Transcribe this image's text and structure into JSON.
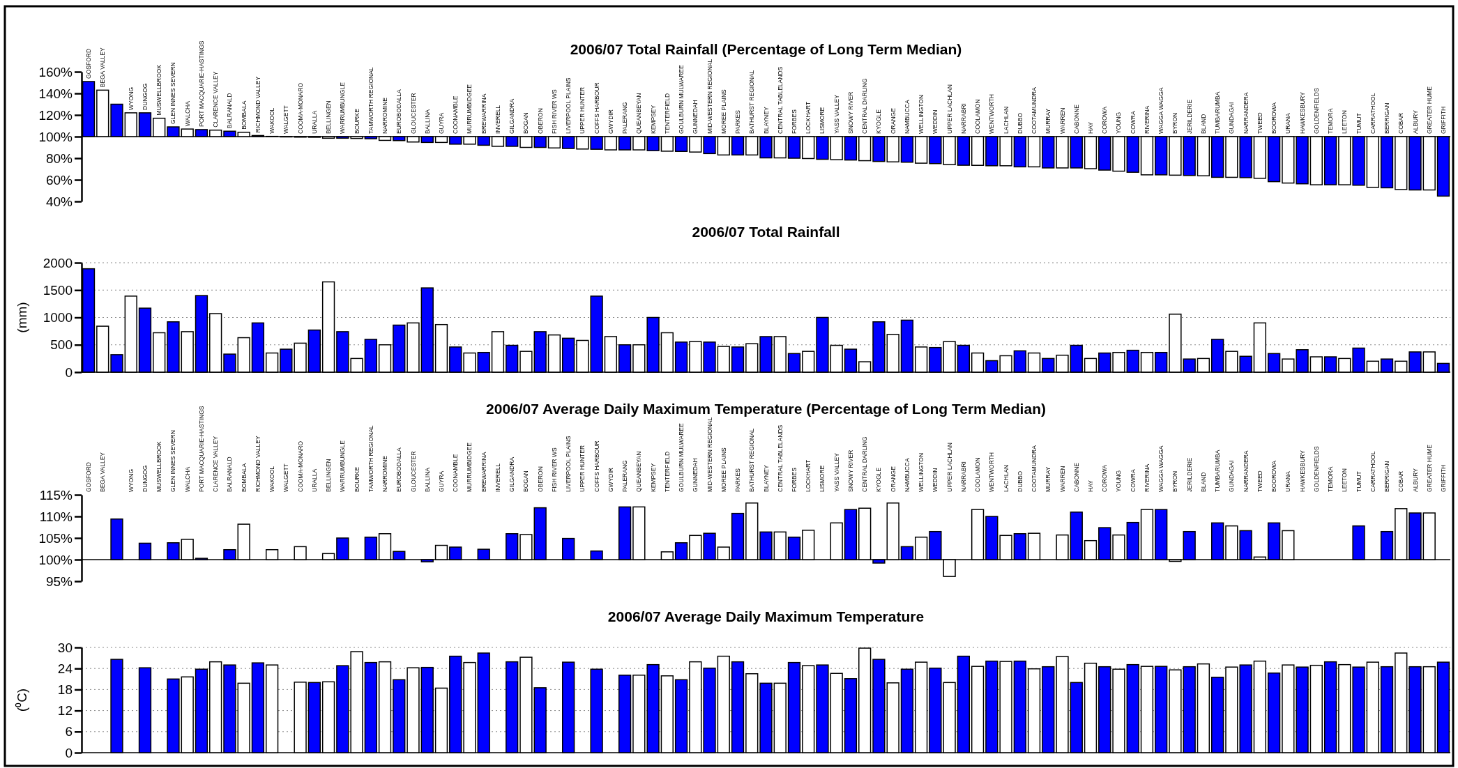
{
  "chart_data": [
    {
      "type": "bar",
      "title": "2006/07 Total Rainfall (Percentage of Long Term Median)",
      "categories": [
        "GOSFORD",
        "BEGA VALLEY",
        null,
        "WYONG",
        "DUNGOG",
        "MUSWELLBROOK",
        "GLEN INNES SEVERN",
        "WALCHA",
        "PORT MACQUARIE-HASTINGS",
        "CLARENCE VALLEY",
        "BALRANALD",
        "BOMBALA",
        "RICHMOND VALLEY",
        "WAKOOL",
        "WALGETT",
        "COOMA-MONARO",
        "URALLA",
        "BELLINGEN",
        "WARRUMBUNGLE",
        "BOURKE",
        "TAMWORTH REGIONAL",
        "NARROMINE",
        "EUROBODALLA",
        "GLOUCESTER",
        "BALLINA",
        "GUYRA",
        "COONAMBLE",
        "MURRUMBIDGEE",
        "BREWARRINA",
        "INVERELL",
        "GILGANDRA",
        "BOGAN",
        "OBERON",
        "FISH RIVER WS",
        "LIVERPOOL PLAINS",
        "UPPER HUNTER",
        "COFFS HARBOUR",
        "GWYDIR",
        "PALERANG",
        "QUEANBEYAN",
        "KEMPSEY",
        "TENTERFIELD",
        "GOULBURN MULWAREE",
        "GUNNEDAH",
        "MID-WESTERN REGIONAL",
        "MOREE PLAINS",
        "PARKES",
        "BATHURST REGIONAL",
        "BLAYNEY",
        "CENTRAL TABLELANDS",
        "FORBES",
        "LOCKHART",
        "LISMORE",
        "YASS VALLEY",
        "SNOWY RIVER",
        "CENTRAL DARLING",
        "KYOGLE",
        "ORANGE",
        "NAMBUCCA",
        "WELLINGTON",
        "WEDDIN",
        "UPPER LACHLAN",
        "NARRABRI",
        "COOLAMON",
        "WENTWORTH",
        "LACHLAN",
        "DUBBO",
        "COOTAMUNDRA",
        "MURRAY",
        "WARREN",
        "CABONNE",
        "HAY",
        "COROWA",
        "YOUNG",
        "COWRA",
        "RIVERINA",
        "WAGGA WAGGA",
        "BYRON",
        "JERILDERIE",
        "BLAND",
        "TUMBARUMBA",
        "GUNDAGAI",
        "NARRANDERA",
        "TWEED",
        "BOOROWA",
        "URANA",
        "HAWKESBURY",
        "GOLDENFIELDS",
        "TEMORA",
        "LEETON",
        "TUMUT",
        "CARRATHOOL",
        "BERRIGAN",
        "COBAR",
        "ALBURY",
        "GREATER HUME",
        "GRIFFITH"
      ],
      "values": [
        51,
        43,
        30,
        22,
        22,
        17,
        9,
        7,
        6.5,
        6,
        5,
        4,
        1,
        0.2,
        -0.3,
        -0.5,
        -0.6,
        -1.5,
        -1.5,
        -1.7,
        -2,
        -3.5,
        -3.7,
        -5,
        -5.4,
        -5.4,
        -7,
        -7,
        -8,
        -9,
        -9,
        -10,
        -10,
        -10.5,
        -11,
        -11.5,
        -11.7,
        -12.3,
        -12.3,
        -12.3,
        -13,
        -13.5,
        -13.7,
        -14.3,
        -15.7,
        -17,
        -17,
        -17,
        -19.7,
        -19.7,
        -20,
        -20.3,
        -21,
        -21.4,
        -21.7,
        -22.3,
        -23,
        -23.4,
        -23.7,
        -24.6,
        -25,
        -26,
        -26.5,
        -26.6,
        -27,
        -27,
        -28,
        -28,
        -29,
        -29,
        -29,
        -29.7,
        -31,
        -32,
        -33,
        -35.4,
        -35.4,
        -35.7,
        -36,
        -36.3,
        -37.7,
        -37.7,
        -38,
        -38.6,
        -41.7,
        -43,
        -43.7,
        -44.6,
        -44.6,
        -44.6,
        -45,
        -47,
        -47.4,
        -49,
        -49.4,
        -49.4,
        -55.1
      ],
      "base": [
        100,
        100,
        100,
        100,
        100,
        100,
        100,
        100,
        100,
        100,
        100,
        100,
        100,
        100,
        100,
        100,
        100,
        100,
        100,
        100,
        100,
        100,
        100,
        100,
        100,
        100,
        100,
        100,
        100,
        100,
        100,
        100,
        100,
        100,
        100,
        100,
        100,
        100,
        100,
        100,
        100,
        100,
        100,
        100,
        100,
        100,
        100,
        100,
        100,
        100,
        100,
        100,
        100,
        100,
        100,
        100,
        100,
        100,
        100,
        100,
        100,
        100,
        100,
        100,
        100,
        100,
        100,
        100,
        100,
        100,
        100,
        100,
        100,
        100,
        100,
        100,
        100,
        100,
        100,
        100,
        100,
        100,
        100,
        100,
        100,
        100,
        100,
        100,
        100,
        100,
        100,
        100,
        100,
        100,
        100,
        100,
        100
      ],
      "colors": [
        "#0000ff",
        "#ffffff",
        "#0000ff",
        "#ffffff",
        "#0000ff",
        "#ffffff",
        "#0000ff",
        "#ffffff",
        "#0000ff",
        "#ffffff",
        "#0000ff",
        "#ffffff",
        "#0000ff",
        "#ffffff",
        "#0000ff",
        "#ffffff",
        "#0000ff",
        "#ffffff",
        "#0000ff",
        "#ffffff",
        "#0000ff",
        "#ffffff",
        "#0000ff",
        "#ffffff",
        "#0000ff",
        "#ffffff",
        "#0000ff",
        "#ffffff",
        "#0000ff",
        "#ffffff",
        "#0000ff",
        "#ffffff",
        "#0000ff",
        "#ffffff",
        "#0000ff",
        "#ffffff",
        "#0000ff",
        "#ffffff",
        "#0000ff",
        "#ffffff",
        "#0000ff",
        "#ffffff",
        "#0000ff",
        "#ffffff",
        "#0000ff",
        "#ffffff",
        "#0000ff",
        "#ffffff",
        "#0000ff",
        "#ffffff",
        "#0000ff",
        "#ffffff",
        "#0000ff",
        "#ffffff",
        "#0000ff",
        "#ffffff",
        "#0000ff",
        "#ffffff",
        "#0000ff",
        "#ffffff",
        "#0000ff",
        "#ffffff",
        "#0000ff",
        "#ffffff",
        "#0000ff",
        "#ffffff",
        "#0000ff",
        "#ffffff",
        "#0000ff",
        "#ffffff",
        "#0000ff",
        "#ffffff",
        "#0000ff",
        "#ffffff",
        "#0000ff",
        "#ffffff",
        "#0000ff",
        "#ffffff",
        "#0000ff",
        "#ffffff",
        "#0000ff",
        "#ffffff",
        "#0000ff",
        "#ffffff",
        "#0000ff",
        "#ffffff",
        "#0000ff",
        "#ffffff",
        "#0000ff",
        "#ffffff",
        "#0000ff",
        "#ffffff",
        "#0000ff",
        "#ffffff",
        "#0000ff",
        "#ffffff",
        "#0000ff"
      ],
      "ylim": [
        40,
        160
      ],
      "yticks": [
        {
          "value": 40,
          "label": "40%"
        },
        {
          "value": 60,
          "label": "60%"
        },
        {
          "value": 80,
          "label": "80%"
        },
        {
          "value": 100,
          "label": "100%"
        },
        {
          "value": 120,
          "label": "120%"
        },
        {
          "value": 140,
          "label": "140%"
        },
        {
          "value": 160,
          "label": "160%"
        }
      ]
    },
    {
      "type": "bar",
      "title": "2006/07 Total Rainfall",
      "ylabel": "(mm)",
      "categories": [
        null,
        null,
        null,
        null,
        null,
        null,
        null,
        null,
        null,
        null,
        null,
        null,
        null,
        null,
        null,
        null,
        null,
        null,
        null,
        null,
        null,
        null,
        null,
        null,
        null,
        null,
        null,
        null,
        null,
        null,
        null,
        null,
        null,
        null,
        null,
        null,
        null,
        null,
        null,
        null,
        null,
        null,
        null,
        null,
        null,
        null,
        null,
        null,
        null,
        null,
        null,
        null,
        null,
        null,
        null,
        null,
        null,
        null,
        null,
        null,
        null,
        null,
        null,
        null,
        null,
        null,
        null,
        null,
        null,
        null,
        null,
        null,
        null,
        null,
        null,
        null,
        null,
        null,
        null,
        null,
        null,
        null,
        null,
        null,
        null,
        null,
        null,
        null,
        null,
        null,
        null,
        null,
        null,
        null,
        null,
        null,
        null
      ],
      "values": [
        1890,
        840,
        320,
        1390,
        1170,
        720,
        920,
        740,
        1400,
        1070,
        330,
        630,
        900,
        350,
        420,
        530,
        770,
        1650,
        740,
        250,
        600,
        500,
        860,
        900,
        1540,
        870,
        460,
        350,
        360,
        740,
        490,
        380,
        740,
        680,
        620,
        580,
        1390,
        650,
        500,
        500,
        1000,
        720,
        550,
        560,
        550,
        470,
        460,
        520,
        650,
        650,
        340,
        380,
        1000,
        490,
        420,
        190,
        920,
        690,
        950,
        460,
        450,
        560,
        490,
        350,
        210,
        300,
        390,
        350,
        250,
        310,
        490,
        250,
        350,
        360,
        400,
        360,
        360,
        1060,
        240,
        250,
        600,
        380,
        290,
        900,
        340,
        240,
        410,
        280,
        280,
        250,
        440,
        200,
        240,
        200,
        370,
        370,
        160
      ],
      "colors": [
        "#0000ff",
        "#ffffff",
        "#0000ff",
        "#ffffff",
        "#0000ff",
        "#ffffff",
        "#0000ff",
        "#ffffff",
        "#0000ff",
        "#ffffff",
        "#0000ff",
        "#ffffff",
        "#0000ff",
        "#ffffff",
        "#0000ff",
        "#ffffff",
        "#0000ff",
        "#ffffff",
        "#0000ff",
        "#ffffff",
        "#0000ff",
        "#ffffff",
        "#0000ff",
        "#ffffff",
        "#0000ff",
        "#ffffff",
        "#0000ff",
        "#ffffff",
        "#0000ff",
        "#ffffff",
        "#0000ff",
        "#ffffff",
        "#0000ff",
        "#ffffff",
        "#0000ff",
        "#ffffff",
        "#0000ff",
        "#ffffff",
        "#0000ff",
        "#ffffff",
        "#0000ff",
        "#ffffff",
        "#0000ff",
        "#ffffff",
        "#0000ff",
        "#ffffff",
        "#0000ff",
        "#ffffff",
        "#0000ff",
        "#ffffff",
        "#0000ff",
        "#ffffff",
        "#0000ff",
        "#ffffff",
        "#0000ff",
        "#ffffff",
        "#0000ff",
        "#ffffff",
        "#0000ff",
        "#ffffff",
        "#0000ff",
        "#ffffff",
        "#0000ff",
        "#ffffff",
        "#0000ff",
        "#ffffff",
        "#0000ff",
        "#ffffff",
        "#0000ff",
        "#ffffff",
        "#0000ff",
        "#ffffff",
        "#0000ff",
        "#ffffff",
        "#0000ff",
        "#ffffff",
        "#0000ff",
        "#ffffff",
        "#0000ff",
        "#ffffff",
        "#0000ff",
        "#ffffff",
        "#0000ff",
        "#ffffff",
        "#0000ff",
        "#ffffff",
        "#0000ff",
        "#ffffff",
        "#0000ff",
        "#ffffff",
        "#0000ff",
        "#ffffff",
        "#0000ff",
        "#ffffff",
        "#0000ff",
        "#ffffff",
        "#0000ff"
      ],
      "ylim": [
        0,
        2000
      ],
      "yticks": [
        0,
        500,
        1000,
        1500,
        2000
      ],
      "grid": "y"
    },
    {
      "type": "bar",
      "title": "2006/07 Average Daily Maximum Temperature (Percentage of Long Term Median)",
      "categories": [
        "GOSFORD",
        "BEGA VALLEY",
        null,
        "WYONG",
        "DUNGOG",
        "MUSWELLBROOK",
        "GLEN INNES SEVERN",
        "WALCHA",
        "PORT MACQUARIE-HASTINGS",
        "CLARENCE VALLEY",
        "BALRANALD",
        "BOMBALA",
        "RICHMOND VALLEY",
        "WAKOOL",
        "WALGETT",
        "COOMA-MONARO",
        "URALLA",
        "BELLINGEN",
        "WARRUMBUNGLE",
        "BOURKE",
        "TAMWORTH REGIONAL",
        "NARROMINE",
        "EUROBODALLA",
        "GLOUCESTER",
        "BALLINA",
        "GUYRA",
        "COONAMBLE",
        "MURRUMBIDGEE",
        "BREWARRINA",
        "INVERELL",
        "GILGANDRA",
        "BOGAN",
        "OBERON",
        "FISH RIVER WS",
        "LIVERPOOL PLAINS",
        "UPPER HUNTER",
        "COFFS HARBOUR",
        "GWYDIR",
        "PALERANG",
        "QUEANBEYAN",
        "KEMPSEY",
        "TENTERFIELD",
        "GOULBURN MULWAREE",
        "GUNNEDAH",
        "MID-WESTERN REGIONAL",
        "MOREE PLAINS",
        "PARKES",
        "BATHURST REGIONAL",
        "BLAYNEY",
        "CENTRAL TABLELANDS",
        "FORBES",
        "LOCKHART",
        "LISMORE",
        "YASS VALLEY",
        "SNOWY RIVER",
        "CENTRAL DARLING",
        "KYOGLE",
        "ORANGE",
        "NAMBUCCA",
        "WELLINGTON",
        "WEDDIN",
        "UPPER LACHLAN",
        "NARRABRI",
        "COOLAMON",
        "WENTWORTH",
        "LACHLAN",
        "DUBBO",
        "COOTAMUNDRA",
        "MURRAY",
        "WARREN",
        "CABONNE",
        "HAY",
        "COROWA",
        "YOUNG",
        "COWRA",
        "RIVERINA",
        "WAGGA WAGGA",
        "BYRON",
        "JERILDERIE",
        "BLAND",
        "TUMBARUMBA",
        "GUNDAGAI",
        "NARRANDERA",
        "TWEED",
        "BOOROWA",
        "URANA",
        "HAWKESBURY",
        "GOLDENFIELDS",
        "TEMORA",
        "LEETON",
        "TUMUT",
        "CARRATHOOL",
        "BERRIGAN",
        "COBAR",
        "ALBURY",
        "GREATER HUME",
        "GRIFFITH"
      ],
      "values": [
        null,
        null,
        9.4,
        null,
        3.8,
        null,
        3.9,
        4.7,
        0.3,
        null,
        2.3,
        8.2,
        null,
        2.3,
        null,
        3,
        null,
        1.4,
        5,
        null,
        5.2,
        6,
        1.9,
        null,
        -0.5,
        3.3,
        2.9,
        null,
        2.4,
        null,
        6,
        5.8,
        12,
        null,
        4.9,
        null,
        2,
        null,
        12.2,
        12.2,
        null,
        1.8,
        3.9,
        5.6,
        6.1,
        2.9,
        10.7,
        13.1,
        6.4,
        6.4,
        5.2,
        6.8,
        null,
        8.5,
        11.6,
        11.9,
        -0.8,
        13.1,
        3,
        5.2,
        6.5,
        -3.9,
        null,
        11.6,
        10,
        5.6,
        6,
        6.1,
        null,
        5.7,
        11,
        4.4,
        7.4,
        5.7,
        8.6,
        11.6,
        11.6,
        -0.4,
        6.5,
        null,
        8.5,
        7.8,
        6.7,
        0.6,
        8.5,
        6.7,
        null,
        null,
        null,
        null,
        7.8,
        null,
        6.5,
        11.8,
        10.8,
        10.8,
        null
      ],
      "base": [
        null,
        null,
        100,
        null,
        100,
        null,
        100,
        100,
        100,
        null,
        100,
        100,
        null,
        100,
        null,
        100,
        null,
        100,
        100,
        null,
        100,
        100,
        100,
        null,
        100,
        100,
        100,
        null,
        100,
        null,
        100,
        100,
        100,
        null,
        100,
        null,
        100,
        null,
        100,
        100,
        null,
        100,
        100,
        100,
        100,
        100,
        100,
        100,
        100,
        100,
        100,
        100,
        null,
        100,
        100,
        100,
        100,
        100,
        100,
        100,
        100,
        100,
        null,
        100,
        100,
        100,
        100,
        100,
        null,
        100,
        100,
        100,
        100,
        100,
        100,
        100,
        100,
        100,
        100,
        null,
        100,
        100,
        100,
        100,
        100,
        100,
        null,
        null,
        null,
        null,
        100,
        null,
        100,
        100,
        100,
        100,
        null
      ],
      "colors": [
        null,
        null,
        "#0000ff",
        null,
        "#0000ff",
        null,
        "#0000ff",
        "#ffffff",
        "#0000ff",
        null,
        "#0000ff",
        "#ffffff",
        null,
        "#ffffff",
        null,
        "#ffffff",
        null,
        "#ffffff",
        "#0000ff",
        null,
        "#0000ff",
        "#ffffff",
        "#0000ff",
        null,
        "#0000ff",
        "#ffffff",
        "#0000ff",
        null,
        "#0000ff",
        null,
        "#0000ff",
        "#ffffff",
        "#0000ff",
        null,
        "#0000ff",
        null,
        "#0000ff",
        null,
        "#0000ff",
        "#ffffff",
        null,
        "#ffffff",
        "#0000ff",
        "#ffffff",
        "#0000ff",
        "#ffffff",
        "#0000ff",
        "#ffffff",
        "#0000ff",
        "#ffffff",
        "#0000ff",
        "#ffffff",
        null,
        "#ffffff",
        "#0000ff",
        "#ffffff",
        "#0000ff",
        "#ffffff",
        "#0000ff",
        "#ffffff",
        "#0000ff",
        "#ffffff",
        null,
        "#ffffff",
        "#0000ff",
        "#ffffff",
        "#0000ff",
        "#ffffff",
        null,
        "#ffffff",
        "#0000ff",
        "#ffffff",
        "#0000ff",
        "#ffffff",
        "#0000ff",
        "#ffffff",
        "#0000ff",
        "#ffffff",
        "#0000ff",
        null,
        "#0000ff",
        "#ffffff",
        "#0000ff",
        "#ffffff",
        "#0000ff",
        "#ffffff",
        null,
        null,
        null,
        null,
        "#0000ff",
        null,
        "#0000ff",
        "#ffffff",
        "#0000ff",
        "#ffffff",
        null
      ],
      "ylim": [
        95,
        115
      ],
      "yticks": [
        {
          "value": 95,
          "label": "95%"
        },
        {
          "value": 100,
          "label": "100%"
        },
        {
          "value": 105,
          "label": "105%"
        },
        {
          "value": 110,
          "label": "110%"
        },
        {
          "value": 115,
          "label": "115%"
        }
      ]
    },
    {
      "type": "bar",
      "title": "2006/07 Average Daily Maximum Temperature",
      "ylabel": "(⁰C)",
      "categories": [
        null,
        null,
        null,
        null,
        null,
        null,
        null,
        null,
        null,
        null,
        null,
        null,
        null,
        null,
        null,
        null,
        null,
        null,
        null,
        null,
        null,
        null,
        null,
        null,
        null,
        null,
        null,
        null,
        null,
        null,
        null,
        null,
        null,
        null,
        null,
        null,
        null,
        null,
        null,
        null,
        null,
        null,
        null,
        null,
        null,
        null,
        null,
        null,
        null,
        null,
        null,
        null,
        null,
        null,
        null,
        null,
        null,
        null,
        null,
        null,
        null,
        null,
        null,
        null,
        null,
        null,
        null,
        null,
        null,
        null,
        null,
        null,
        null,
        null,
        null,
        null,
        null,
        null,
        null,
        null,
        null,
        null,
        null,
        null,
        null,
        null,
        null,
        null,
        null,
        null,
        null,
        null,
        null,
        null,
        null,
        null,
        null
      ],
      "values": [
        null,
        null,
        26.6,
        null,
        24.2,
        null,
        21,
        21.6,
        23.8,
        25.9,
        25,
        19.8,
        25.6,
        25,
        null,
        20.1,
        20,
        20.2,
        24.8,
        28.8,
        25.7,
        25.9,
        20.8,
        24.2,
        24.3,
        18.4,
        27.5,
        25.7,
        28.4,
        null,
        25.9,
        27.2,
        18.5,
        null,
        25.8,
        null,
        23.8,
        null,
        22.1,
        22.1,
        25.1,
        21.9,
        20.8,
        25.9,
        24.1,
        27.5,
        25.9,
        22.5,
        19.8,
        19.8,
        25.7,
        24.8,
        25,
        22.6,
        21.1,
        29.8,
        26.6,
        19.9,
        23.8,
        25.8,
        24.1,
        20,
        27.5,
        24.6,
        26.1,
        26,
        26.1,
        23.9,
        24.5,
        27.4,
        20,
        25.5,
        24.5,
        23.8,
        25.1,
        24.6,
        24.6,
        23.6,
        24.5,
        25.3,
        21.5,
        24.4,
        25,
        26.1,
        22.7,
        25,
        24.4,
        24.9,
        25.9,
        25.1,
        24.4,
        25.8,
        24.5,
        28.4,
        24.5,
        24.5,
        25.8
      ],
      "colors": [
        null,
        null,
        "#0000ff",
        null,
        "#0000ff",
        null,
        "#0000ff",
        "#ffffff",
        "#0000ff",
        "#ffffff",
        "#0000ff",
        "#ffffff",
        "#0000ff",
        "#ffffff",
        null,
        "#ffffff",
        "#0000ff",
        "#ffffff",
        "#0000ff",
        "#ffffff",
        "#0000ff",
        "#ffffff",
        "#0000ff",
        "#ffffff",
        "#0000ff",
        "#ffffff",
        "#0000ff",
        "#ffffff",
        "#0000ff",
        null,
        "#0000ff",
        "#ffffff",
        "#0000ff",
        null,
        "#0000ff",
        null,
        "#0000ff",
        null,
        "#0000ff",
        "#ffffff",
        "#0000ff",
        "#ffffff",
        "#0000ff",
        "#ffffff",
        "#0000ff",
        "#ffffff",
        "#0000ff",
        "#ffffff",
        "#0000ff",
        "#ffffff",
        "#0000ff",
        "#ffffff",
        "#0000ff",
        "#ffffff",
        "#0000ff",
        "#ffffff",
        "#0000ff",
        "#ffffff",
        "#0000ff",
        "#ffffff",
        "#0000ff",
        "#ffffff",
        "#0000ff",
        "#ffffff",
        "#0000ff",
        "#ffffff",
        "#0000ff",
        "#ffffff",
        "#0000ff",
        "#ffffff",
        "#0000ff",
        "#ffffff",
        "#0000ff",
        "#ffffff",
        "#0000ff",
        "#ffffff",
        "#0000ff",
        "#ffffff",
        "#0000ff",
        "#ffffff",
        "#0000ff",
        "#ffffff",
        "#0000ff",
        "#ffffff",
        "#0000ff",
        "#ffffff",
        "#0000ff",
        "#ffffff",
        "#0000ff",
        "#ffffff",
        "#0000ff",
        "#ffffff",
        "#0000ff",
        "#ffffff",
        "#0000ff",
        "#ffffff",
        "#0000ff"
      ],
      "ylim": [
        0,
        30
      ],
      "yticks": [
        0,
        6,
        12,
        18,
        24,
        30
      ],
      "grid": "y"
    }
  ]
}
